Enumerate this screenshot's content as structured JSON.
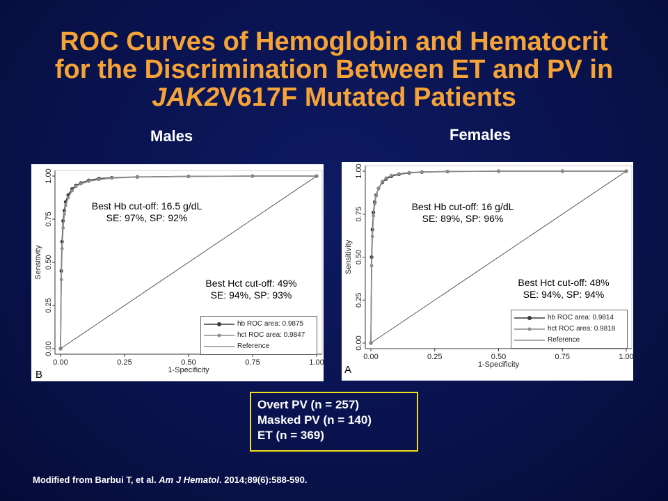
{
  "title": {
    "line1": "ROC Curves of Hemoglobin and Hematocrit",
    "line2": "for the Discrimination Between ET and PV in",
    "line3_gene": "JAK2",
    "line3_rest": "V617F Mutated Patients"
  },
  "colors": {
    "title": "#f5a337",
    "box_border": "#f2e01a",
    "hb_curve": "#3a3a3a",
    "hct_curve": "#8c8c8c",
    "reference": "#555555"
  },
  "males_label": "Males",
  "females_label": "Females",
  "info_box": {
    "line1": "Overt PV (n = 257)",
    "line2": "Masked PV (n = 140)",
    "line3": "ET (n = 369)"
  },
  "citation": {
    "prefix": "Modified from Barbui T, et al. ",
    "journal": "Am J Hematol",
    "suffix": ". 2014;89(6):588-590."
  },
  "chart_data": [
    {
      "type": "line",
      "panel_letter": "B",
      "group": "Males",
      "xlabel": "1-Specificity",
      "ylabel": "Sensitivity",
      "xlim": [
        0,
        1
      ],
      "ylim": [
        0,
        1
      ],
      "xticks": [
        "0.00",
        "0.25",
        "0.50",
        "0.75",
        "1.00"
      ],
      "yticks": [
        "0.00",
        "0.25",
        "0.50",
        "0.75",
        "1.00"
      ],
      "series": [
        {
          "name": "hb ROC area: 0.9875",
          "x": [
            0,
            0.003,
            0.006,
            0.01,
            0.015,
            0.02,
            0.03,
            0.045,
            0.06,
            0.08,
            0.11,
            0.15,
            0.2,
            0.3,
            0.5,
            0.75,
            1.0
          ],
          "y": [
            0,
            0.45,
            0.62,
            0.74,
            0.8,
            0.85,
            0.89,
            0.925,
            0.945,
            0.96,
            0.975,
            0.985,
            0.99,
            0.995,
            0.998,
            1.0,
            1.0
          ]
        },
        {
          "name": "hct ROC area: 0.9847",
          "x": [
            0,
            0.003,
            0.006,
            0.01,
            0.015,
            0.02,
            0.03,
            0.045,
            0.06,
            0.08,
            0.11,
            0.15,
            0.2,
            0.3,
            0.5,
            0.75,
            1.0
          ],
          "y": [
            0,
            0.4,
            0.58,
            0.7,
            0.78,
            0.83,
            0.875,
            0.915,
            0.94,
            0.955,
            0.97,
            0.98,
            0.988,
            0.994,
            0.998,
            1.0,
            1.0
          ]
        },
        {
          "name": "Reference",
          "x": [
            0,
            1
          ],
          "y": [
            0,
            1
          ]
        }
      ],
      "annotations": [
        {
          "line1": "Best Hb cut-off:  16.5 g/dL",
          "line2": "SE: 97%, SP: 92%"
        },
        {
          "line1": "Best Hct cut-off:  49%",
          "line2": "SE: 94%, SP: 93%"
        }
      ]
    },
    {
      "type": "line",
      "panel_letter": "A",
      "group": "Females",
      "xlabel": "1-Specificity",
      "ylabel": "Sensitivity",
      "xlim": [
        0,
        1
      ],
      "ylim": [
        0,
        1
      ],
      "xticks": [
        "0.00",
        "0.25",
        "0.50",
        "0.75",
        "1.00"
      ],
      "yticks": [
        "0.00",
        "0.25",
        "0.50",
        "0.75",
        "1.00"
      ],
      "series": [
        {
          "name": "hb ROC area: 0.9814",
          "x": [
            0,
            0.003,
            0.006,
            0.01,
            0.015,
            0.02,
            0.03,
            0.045,
            0.06,
            0.08,
            0.11,
            0.15,
            0.2,
            0.3,
            0.5,
            0.75,
            1.0
          ],
          "y": [
            0,
            0.5,
            0.66,
            0.76,
            0.82,
            0.86,
            0.9,
            0.935,
            0.955,
            0.97,
            0.982,
            0.99,
            0.995,
            0.998,
            1.0,
            1.0,
            1.0
          ]
        },
        {
          "name": "hct ROC area: 0.9818",
          "x": [
            0,
            0.003,
            0.006,
            0.01,
            0.015,
            0.02,
            0.03,
            0.045,
            0.06,
            0.08,
            0.11,
            0.15,
            0.2,
            0.3,
            0.5,
            0.75,
            1.0
          ],
          "y": [
            0,
            0.45,
            0.62,
            0.74,
            0.81,
            0.855,
            0.9,
            0.94,
            0.96,
            0.975,
            0.985,
            0.992,
            0.996,
            0.998,
            1.0,
            1.0,
            1.0
          ]
        },
        {
          "name": "Reference",
          "x": [
            0,
            1
          ],
          "y": [
            0,
            1
          ]
        }
      ],
      "annotations": [
        {
          "line1": "Best Hb cut-off:  16 g/dL",
          "line2": "SE: 89%, SP: 96%"
        },
        {
          "line1": "Best Hct cut-off:  48%",
          "line2": "SE: 94%, SP: 94%"
        }
      ]
    }
  ]
}
